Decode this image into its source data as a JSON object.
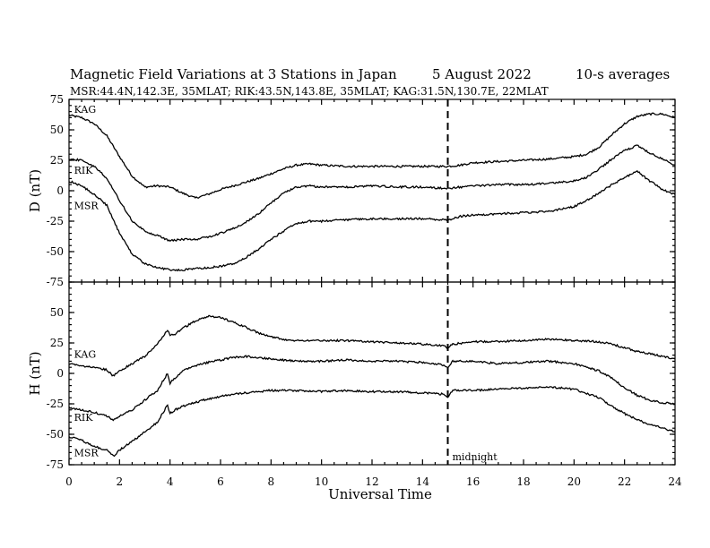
{
  "header": {
    "title_main": "Magnetic Field Variations at 3 Stations in Japan",
    "title_date": "5   August  2022",
    "title_avg": "10-s averages",
    "subtitle": "MSR:44.4N,142.3E, 35MLAT;  RIK:43.5N,143.8E, 35MLAT;  KAG:31.5N,130.7E, 22MLAT"
  },
  "chart_data": [
    {
      "type": "line",
      "panel": "D",
      "ylabel": "D (nT)",
      "ylim": [
        -75,
        75
      ],
      "yticks": [
        "75",
        "50",
        "25",
        "0",
        "-25",
        "-50",
        "-75"
      ],
      "xlim": [
        0,
        24
      ],
      "grid": false,
      "series": [
        {
          "name": "KAG",
          "x": [
            0,
            0.5,
            1,
            1.5,
            2,
            2.5,
            3,
            3.5,
            4,
            4.5,
            5,
            5.5,
            6,
            6.5,
            7,
            7.5,
            8,
            8.5,
            9,
            9.5,
            10,
            11,
            12,
            13,
            14,
            15,
            15.5,
            16,
            17,
            18,
            19,
            20,
            20.5,
            21,
            21.5,
            22,
            22.5,
            23,
            23.5,
            24
          ],
          "y": [
            62,
            60,
            55,
            45,
            28,
            12,
            3,
            4,
            3,
            -2,
            -6,
            -3,
            1,
            4,
            7,
            10,
            14,
            18,
            21,
            22,
            21,
            20,
            20,
            20,
            20,
            20,
            21,
            23,
            24,
            25,
            26,
            28,
            30,
            36,
            46,
            55,
            61,
            63,
            63,
            60
          ]
        },
        {
          "name": "RIK",
          "x": [
            0,
            0.5,
            1,
            1.5,
            2,
            2.5,
            3,
            3.5,
            4,
            4.5,
            5,
            5.5,
            6,
            6.5,
            7,
            7.5,
            8,
            8.5,
            9,
            9.5,
            10,
            11,
            12,
            13,
            14,
            15,
            15.5,
            16,
            17,
            18,
            19,
            20,
            20.5,
            21,
            21.5,
            22,
            22.5,
            23,
            23.5,
            24
          ],
          "y": [
            26,
            25,
            20,
            10,
            -8,
            -25,
            -33,
            -37,
            -41,
            -40,
            -40,
            -38,
            -35,
            -31,
            -26,
            -19,
            -10,
            -2,
            3,
            4,
            3,
            3,
            4,
            3,
            3,
            2,
            3,
            4,
            5,
            5,
            6,
            8,
            11,
            18,
            26,
            33,
            37,
            31,
            26,
            21
          ]
        },
        {
          "name": "MSR",
          "x": [
            0,
            0.5,
            1,
            1.5,
            2,
            2.5,
            3,
            3.5,
            4,
            4.5,
            5,
            5.5,
            6,
            6.5,
            7,
            7.5,
            8,
            8.5,
            9,
            9.5,
            10,
            11,
            12,
            13,
            14,
            15,
            15.5,
            16,
            17,
            18,
            19,
            20,
            20.5,
            21,
            21.5,
            22,
            22.5,
            23,
            23.5,
            24
          ],
          "y": [
            8,
            4,
            -3,
            -12,
            -35,
            -52,
            -60,
            -63,
            -65,
            -65,
            -64,
            -63,
            -62,
            -60,
            -55,
            -48,
            -40,
            -33,
            -27,
            -25,
            -25,
            -24,
            -23,
            -23,
            -23,
            -24,
            -21,
            -20,
            -19,
            -18,
            -17,
            -13,
            -8,
            -2,
            5,
            11,
            16,
            8,
            1,
            -3
          ]
        }
      ]
    },
    {
      "type": "line",
      "panel": "H",
      "ylabel": "H (nT)",
      "ylim": [
        -75,
        75
      ],
      "yticks": [
        "50",
        "25",
        "0",
        "-25",
        "-50",
        "-75"
      ],
      "xlim": [
        0,
        24
      ],
      "xticks": [
        "0",
        "2",
        "4",
        "6",
        "8",
        "10",
        "12",
        "14",
        "16",
        "18",
        "20",
        "22",
        "24"
      ],
      "xlabel": "Universal Time",
      "grid": false,
      "series": [
        {
          "name": "KAG",
          "x": [
            0,
            0.5,
            1,
            1.5,
            1.75,
            2,
            2.5,
            3,
            3.5,
            3.9,
            4,
            4.2,
            4.5,
            5,
            5.5,
            6,
            6.5,
            7,
            7.5,
            8,
            8.5,
            9,
            10,
            11,
            12,
            13,
            14,
            14.8,
            15,
            15.2,
            16,
            17,
            18,
            19,
            20,
            21,
            21.5,
            22,
            22.5,
            23,
            23.5,
            24
          ],
          "y": [
            8,
            6,
            5,
            3,
            -2,
            2,
            8,
            14,
            24,
            36,
            31,
            32,
            37,
            43,
            47,
            46,
            42,
            38,
            33,
            30,
            28,
            27,
            27,
            27,
            26,
            25,
            24,
            23,
            21,
            24,
            26,
            26,
            27,
            28,
            27,
            26,
            24,
            21,
            18,
            16,
            14,
            12
          ]
        },
        {
          "name": "RIK",
          "x": [
            0,
            0.5,
            1,
            1.5,
            1.75,
            2,
            2.5,
            3,
            3.5,
            3.9,
            4,
            4.2,
            4.5,
            5,
            5.5,
            6,
            6.5,
            7,
            7.5,
            8,
            8.5,
            9,
            10,
            11,
            12,
            13,
            14,
            14.8,
            15,
            15.2,
            16,
            17,
            18,
            19,
            20,
            21,
            21.5,
            22,
            22.5,
            23,
            23.5,
            24
          ],
          "y": [
            -28,
            -30,
            -32,
            -35,
            -38,
            -35,
            -30,
            -22,
            -14,
            0,
            -8,
            -4,
            2,
            6,
            9,
            11,
            13,
            14,
            13,
            12,
            11,
            10,
            10,
            11,
            10,
            10,
            9,
            7,
            5,
            10,
            10,
            8,
            9,
            10,
            8,
            2,
            -4,
            -12,
            -18,
            -22,
            -24,
            -25
          ]
        },
        {
          "name": "MSR",
          "x": [
            0,
            0.5,
            1,
            1.5,
            1.75,
            2,
            2.5,
            3,
            3.5,
            3.9,
            4,
            4.2,
            4.5,
            5,
            5.5,
            6,
            6.5,
            7,
            7.5,
            8,
            8.5,
            9,
            10,
            11,
            12,
            13,
            14,
            14.8,
            15,
            15.2,
            16,
            17,
            18,
            19,
            20,
            21,
            21.5,
            22,
            22.5,
            23,
            23.5,
            24
          ],
          "y": [
            -52,
            -55,
            -60,
            -63,
            -68,
            -63,
            -56,
            -48,
            -40,
            -26,
            -33,
            -30,
            -27,
            -24,
            -21,
            -19,
            -17,
            -16,
            -15,
            -14,
            -14,
            -14,
            -15,
            -14,
            -15,
            -15,
            -16,
            -17,
            -19,
            -14,
            -14,
            -13,
            -12,
            -11,
            -13,
            -20,
            -27,
            -33,
            -38,
            -42,
            -45,
            -48
          ]
        }
      ]
    }
  ],
  "annotations": {
    "midnight_label": "midnight",
    "midnight_ut": 15
  }
}
